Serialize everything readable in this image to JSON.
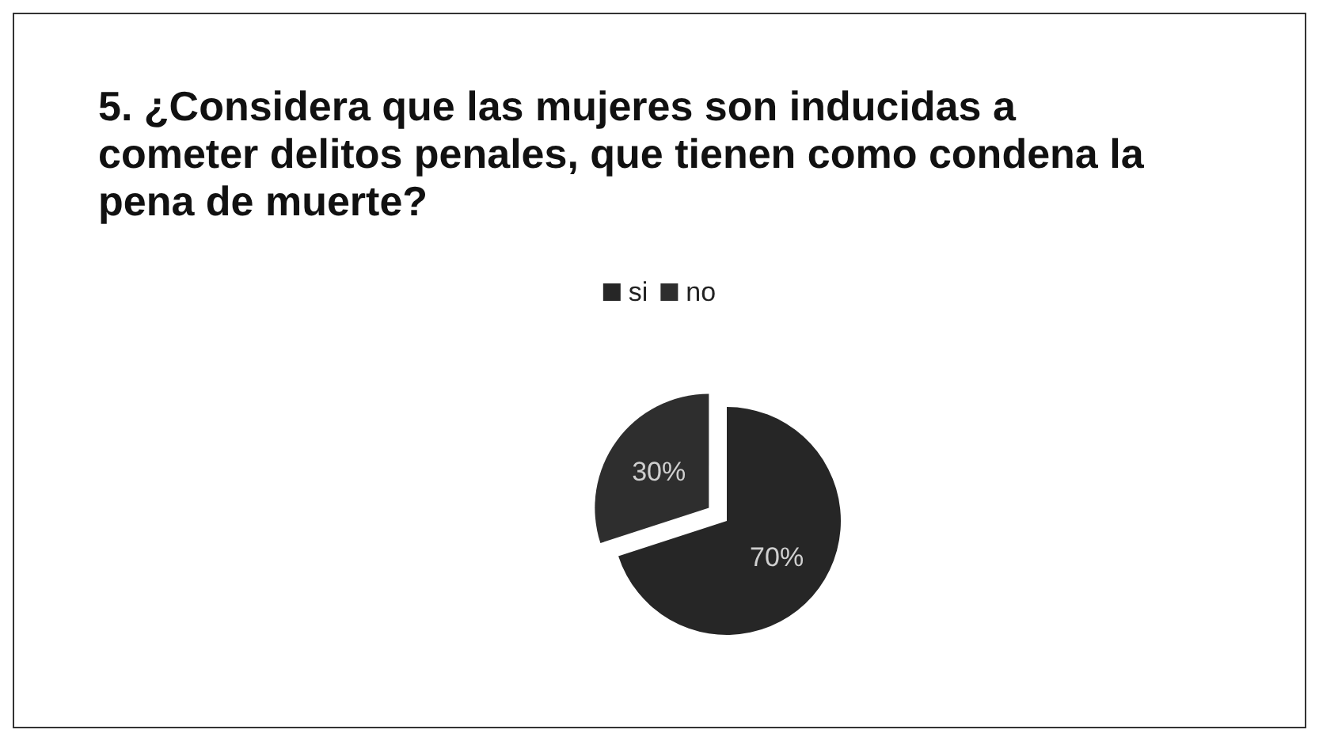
{
  "chart_data": {
    "type": "pie",
    "title": "5. ¿Considera que las mujeres son inducidas a cometer delitos penales, que tienen como condena la pena de muerte?",
    "categories": [
      "si",
      "no"
    ],
    "values": [
      70,
      30
    ],
    "colors": [
      "#262626",
      "#2e2e2e"
    ],
    "value_labels": [
      "70%",
      "30%"
    ],
    "legend": "top"
  }
}
